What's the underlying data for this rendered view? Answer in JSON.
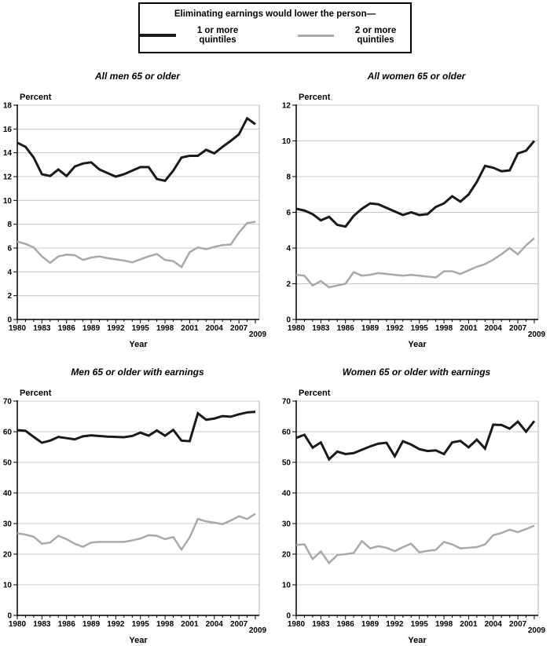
{
  "legend": {
    "title": "Eliminating earnings would lower the person—",
    "series": [
      {
        "label": "1 or more quintiles",
        "color": "#1a1a1a"
      },
      {
        "label": "2 or more quintiles",
        "color": "#a9a9a9"
      }
    ]
  },
  "chart_common": {
    "x": [
      1980,
      1981,
      1982,
      1983,
      1984,
      1985,
      1986,
      1987,
      1988,
      1989,
      1990,
      1991,
      1992,
      1993,
      1994,
      1995,
      1996,
      1997,
      1998,
      1999,
      2000,
      2001,
      2002,
      2003,
      2004,
      2005,
      2006,
      2007,
      2008,
      2009
    ],
    "xticks": [
      1980,
      1983,
      1986,
      1989,
      1992,
      1995,
      1998,
      2001,
      2004,
      2007,
      2009
    ],
    "grid": true,
    "legend_position": "top",
    "colors": {
      "axis": "#000000",
      "gridline": "#c8c8c8",
      "plot_right_border": "#b0b0b0"
    }
  },
  "chart_data": [
    {
      "type": "line",
      "title": "All men 65 or older",
      "xlabel": "Year",
      "ylabel": "Percent",
      "ylim": [
        0,
        18
      ],
      "ytick_step": 2,
      "series": [
        {
          "name": "1 or more quintiles",
          "color": "#1a1a1a",
          "values": [
            14.85,
            14.5,
            13.6,
            12.2,
            12.05,
            12.6,
            12.05,
            12.85,
            13.1,
            13.2,
            12.6,
            12.3,
            12.0,
            12.2,
            12.5,
            12.8,
            12.8,
            11.8,
            11.65,
            12.5,
            13.6,
            13.75,
            13.75,
            14.25,
            13.95,
            14.5,
            15.0,
            15.55,
            16.9,
            16.4
          ]
        },
        {
          "name": "2 or more quintiles",
          "color": "#a9a9a9",
          "values": [
            6.55,
            6.35,
            6.05,
            5.3,
            4.75,
            5.3,
            5.45,
            5.4,
            5.0,
            5.2,
            5.3,
            5.15,
            5.05,
            4.95,
            4.8,
            5.05,
            5.3,
            5.5,
            5.0,
            4.9,
            4.4,
            5.65,
            6.05,
            5.9,
            6.1,
            6.25,
            6.3,
            7.3,
            8.1,
            8.2
          ]
        }
      ]
    },
    {
      "type": "line",
      "title": "All women 65 or older",
      "xlabel": "Year",
      "ylabel": "Percent",
      "ylim": [
        0,
        12
      ],
      "ytick_step": 2,
      "series": [
        {
          "name": "1 or more quintiles",
          "color": "#1a1a1a",
          "values": [
            6.2,
            6.1,
            5.9,
            5.55,
            5.75,
            5.3,
            5.2,
            5.8,
            6.2,
            6.5,
            6.45,
            6.25,
            6.05,
            5.85,
            6.0,
            5.85,
            5.9,
            6.3,
            6.5,
            6.9,
            6.6,
            7.0,
            7.7,
            8.6,
            8.5,
            8.3,
            8.35,
            9.3,
            9.45,
            10.0
          ]
        },
        {
          "name": "2 or more quintiles",
          "color": "#a9a9a9",
          "values": [
            2.5,
            2.45,
            1.9,
            2.15,
            1.8,
            1.9,
            2.0,
            2.65,
            2.45,
            2.5,
            2.6,
            2.55,
            2.5,
            2.45,
            2.5,
            2.45,
            2.4,
            2.35,
            2.7,
            2.7,
            2.55,
            2.75,
            2.95,
            3.1,
            3.35,
            3.65,
            4.0,
            3.65,
            4.15,
            4.55
          ]
        }
      ]
    },
    {
      "type": "line",
      "title": "Men 65 or older with earnings",
      "xlabel": "Year",
      "ylabel": "Percent",
      "ylim": [
        0,
        70
      ],
      "ytick_step": 10,
      "series": [
        {
          "name": "1 or more quintiles",
          "color": "#1a1a1a",
          "values": [
            60.5,
            60.3,
            58.3,
            56.4,
            57.1,
            58.3,
            57.9,
            57.5,
            58.5,
            58.8,
            58.6,
            58.4,
            58.3,
            58.2,
            58.6,
            59.7,
            58.7,
            60.4,
            58.7,
            60.6,
            57.1,
            56.9,
            66.0,
            63.9,
            64.3,
            65.1,
            64.9,
            65.7,
            66.3,
            66.5
          ]
        },
        {
          "name": "2 or more quintiles",
          "color": "#a9a9a9",
          "values": [
            26.8,
            26.4,
            25.7,
            23.4,
            23.8,
            26.0,
            24.9,
            23.4,
            22.4,
            23.8,
            24.0,
            24.0,
            24.0,
            24.0,
            24.5,
            25.1,
            26.2,
            26.0,
            24.9,
            25.6,
            21.5,
            25.5,
            31.5,
            30.7,
            30.3,
            29.8,
            31.0,
            32.4,
            31.5,
            33.2
          ]
        }
      ]
    },
    {
      "type": "line",
      "title": "Women 65 or older with earnings",
      "xlabel": "Year",
      "ylabel": "Percent",
      "ylim": [
        0,
        70
      ],
      "ytick_step": 10,
      "series": [
        {
          "name": "1 or more quintiles",
          "color": "#1a1a1a",
          "values": [
            58.0,
            59.0,
            54.8,
            56.5,
            51.0,
            53.5,
            52.7,
            53.0,
            54.1,
            55.2,
            56.1,
            56.4,
            52.0,
            56.9,
            55.8,
            54.3,
            53.7,
            53.9,
            52.7,
            56.5,
            57.0,
            54.9,
            57.4,
            54.5,
            62.3,
            62.2,
            61.0,
            63.3,
            60.0,
            63.5
          ]
        },
        {
          "name": "2 or more quintiles",
          "color": "#a9a9a9",
          "values": [
            23.0,
            23.2,
            18.4,
            20.9,
            17.1,
            19.7,
            20.0,
            20.4,
            24.3,
            21.9,
            22.6,
            22.1,
            21.0,
            22.3,
            23.4,
            20.6,
            21.1,
            21.4,
            24.0,
            23.2,
            21.9,
            22.1,
            22.3,
            23.2,
            26.2,
            26.9,
            28.0,
            27.2,
            28.2,
            29.3
          ]
        }
      ]
    }
  ]
}
